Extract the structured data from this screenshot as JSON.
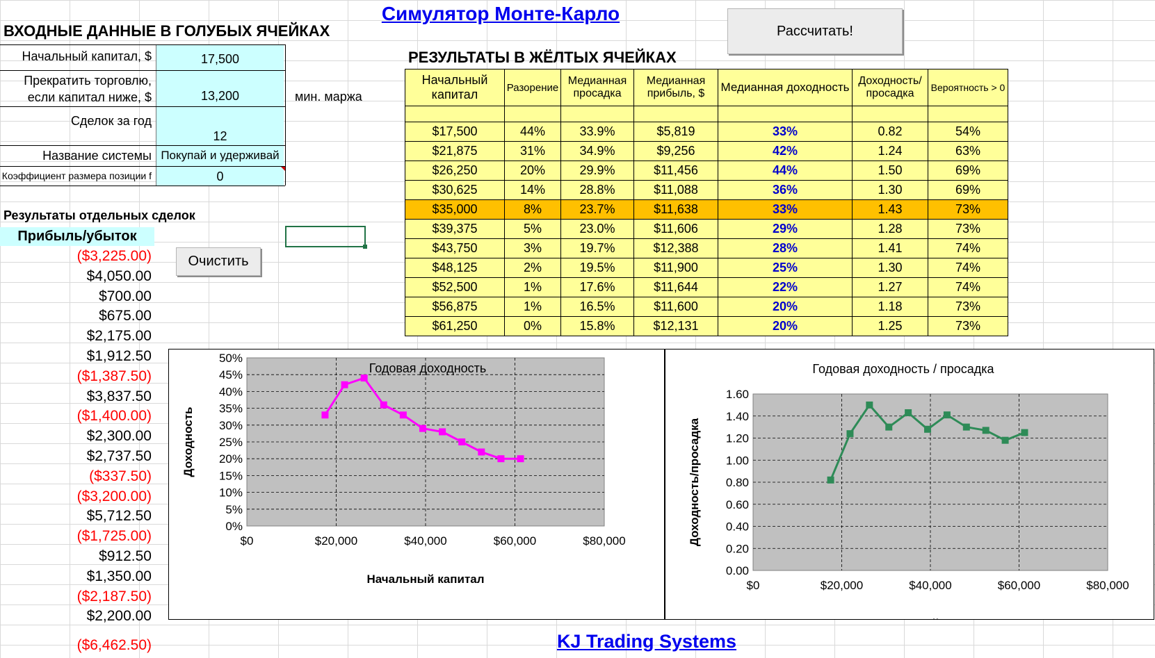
{
  "title": "Симулятор Монте-Карло",
  "footer": "KJ Trading Systems",
  "calculate_label": "Рассчитать!",
  "clear_label": "Очистить",
  "inputs": {
    "heading": "ВХОДНЫЕ ДАННЫЕ В ГОЛУБЫХ ЯЧЕЙКАХ",
    "start_capital_label": "Начальный капитал, $",
    "start_capital": "17,500",
    "stop_label_1": "Прекратить торговлю,",
    "stop_label_2": "если капитал ниже, $",
    "stop_value": "13,200",
    "min_margin": "мин. маржа",
    "trades_label": "Сделок за год",
    "trades_value": "12",
    "system_label": "Название системы",
    "system_value": "Покупай и удерживай",
    "f_label": "Коэффициент размера позиции f",
    "f_value": "0"
  },
  "trades": {
    "heading": "Результаты отдельных сделок",
    "column": "Прибыль/убыток",
    "values": [
      "($3,225.00)",
      "$4,050.00",
      "$700.00",
      "$675.00",
      "$2,175.00",
      "$1,912.50",
      "($1,387.50)",
      "$3,837.50",
      "($1,400.00)",
      "$2,300.00",
      "$2,737.50",
      "($337.50)",
      "($3,200.00)",
      "$5,712.50",
      "($1,725.00)",
      "$912.50",
      "$1,350.00",
      "($2,187.50)",
      "$2,200.00",
      "($6,462.50)"
    ]
  },
  "results": {
    "heading": "РЕЗУЛЬТАТЫ В ЖЁЛТЫХ ЯЧЕЙКАХ",
    "headers": [
      "Начальный капитал",
      "Разорение",
      "Медианная просадка",
      "Медианная прибыль, $",
      "Медианная доходность",
      "Доходность/ просадка",
      "Вероятность > 0"
    ],
    "rows": [
      [
        "$17,500",
        "44%",
        "33.9%",
        "$5,819",
        "33%",
        "0.82",
        "54%"
      ],
      [
        "$21,875",
        "31%",
        "34.9%",
        "$9,256",
        "42%",
        "1.24",
        "63%"
      ],
      [
        "$26,250",
        "20%",
        "29.9%",
        "$11,456",
        "44%",
        "1.50",
        "69%"
      ],
      [
        "$30,625",
        "14%",
        "28.8%",
        "$11,088",
        "36%",
        "1.30",
        "69%"
      ],
      [
        "$35,000",
        "8%",
        "23.7%",
        "$11,638",
        "33%",
        "1.43",
        "73%"
      ],
      [
        "$39,375",
        "5%",
        "23.0%",
        "$11,606",
        "29%",
        "1.28",
        "73%"
      ],
      [
        "$43,750",
        "3%",
        "19.7%",
        "$12,388",
        "28%",
        "1.41",
        "74%"
      ],
      [
        "$48,125",
        "2%",
        "19.5%",
        "$11,900",
        "25%",
        "1.30",
        "74%"
      ],
      [
        "$52,500",
        "1%",
        "17.6%",
        "$11,644",
        "22%",
        "1.27",
        "74%"
      ],
      [
        "$56,875",
        "1%",
        "16.5%",
        "$11,600",
        "20%",
        "1.18",
        "73%"
      ],
      [
        "$61,250",
        "0%",
        "15.8%",
        "$12,131",
        "20%",
        "1.25",
        "73%"
      ]
    ],
    "highlight_row": 4
  },
  "colors": {
    "input_bg": "#ccffff",
    "result_bg": "#ffff99",
    "highlight": "#ffc000",
    "chart1_line": "#ff00ff",
    "chart2_line": "#2e8b57",
    "plot_bg": "#c0c0c0"
  },
  "chart_data": [
    {
      "type": "line",
      "title": "Годовая доходность",
      "xlabel": "Начальный капитал",
      "ylabel": "Доходность",
      "x": [
        17500,
        21875,
        26250,
        30625,
        35000,
        39375,
        43750,
        48125,
        52500,
        56875,
        61250
      ],
      "y": [
        0.33,
        0.42,
        0.44,
        0.36,
        0.33,
        0.29,
        0.28,
        0.25,
        0.22,
        0.2,
        0.2
      ],
      "xlim": [
        0,
        80000
      ],
      "ylim": [
        0,
        0.5
      ],
      "xticks": [
        "$0",
        "$20,000",
        "$40,000",
        "$60,000",
        "$80,000"
      ],
      "yticks": [
        "0%",
        "5%",
        "10%",
        "15%",
        "20%",
        "25%",
        "30%",
        "35%",
        "40%",
        "45%",
        "50%"
      ],
      "grid": true
    },
    {
      "type": "line",
      "title": "Годовая доходность / просадка",
      "xlabel": "Начальный капитал",
      "ylabel": "Доходность/просадка",
      "x": [
        17500,
        21875,
        26250,
        30625,
        35000,
        39375,
        43750,
        48125,
        52500,
        56875,
        61250
      ],
      "y": [
        0.82,
        1.24,
        1.5,
        1.3,
        1.43,
        1.28,
        1.41,
        1.3,
        1.27,
        1.18,
        1.25
      ],
      "xlim": [
        0,
        80000
      ],
      "ylim": [
        0,
        1.6
      ],
      "xticks": [
        "$0",
        "$20,000",
        "$40,000",
        "$60,000",
        "$80,000"
      ],
      "yticks": [
        "0.00",
        "0.20",
        "0.40",
        "0.60",
        "0.80",
        "1.00",
        "1.20",
        "1.40",
        "1.60"
      ],
      "grid": true
    }
  ]
}
